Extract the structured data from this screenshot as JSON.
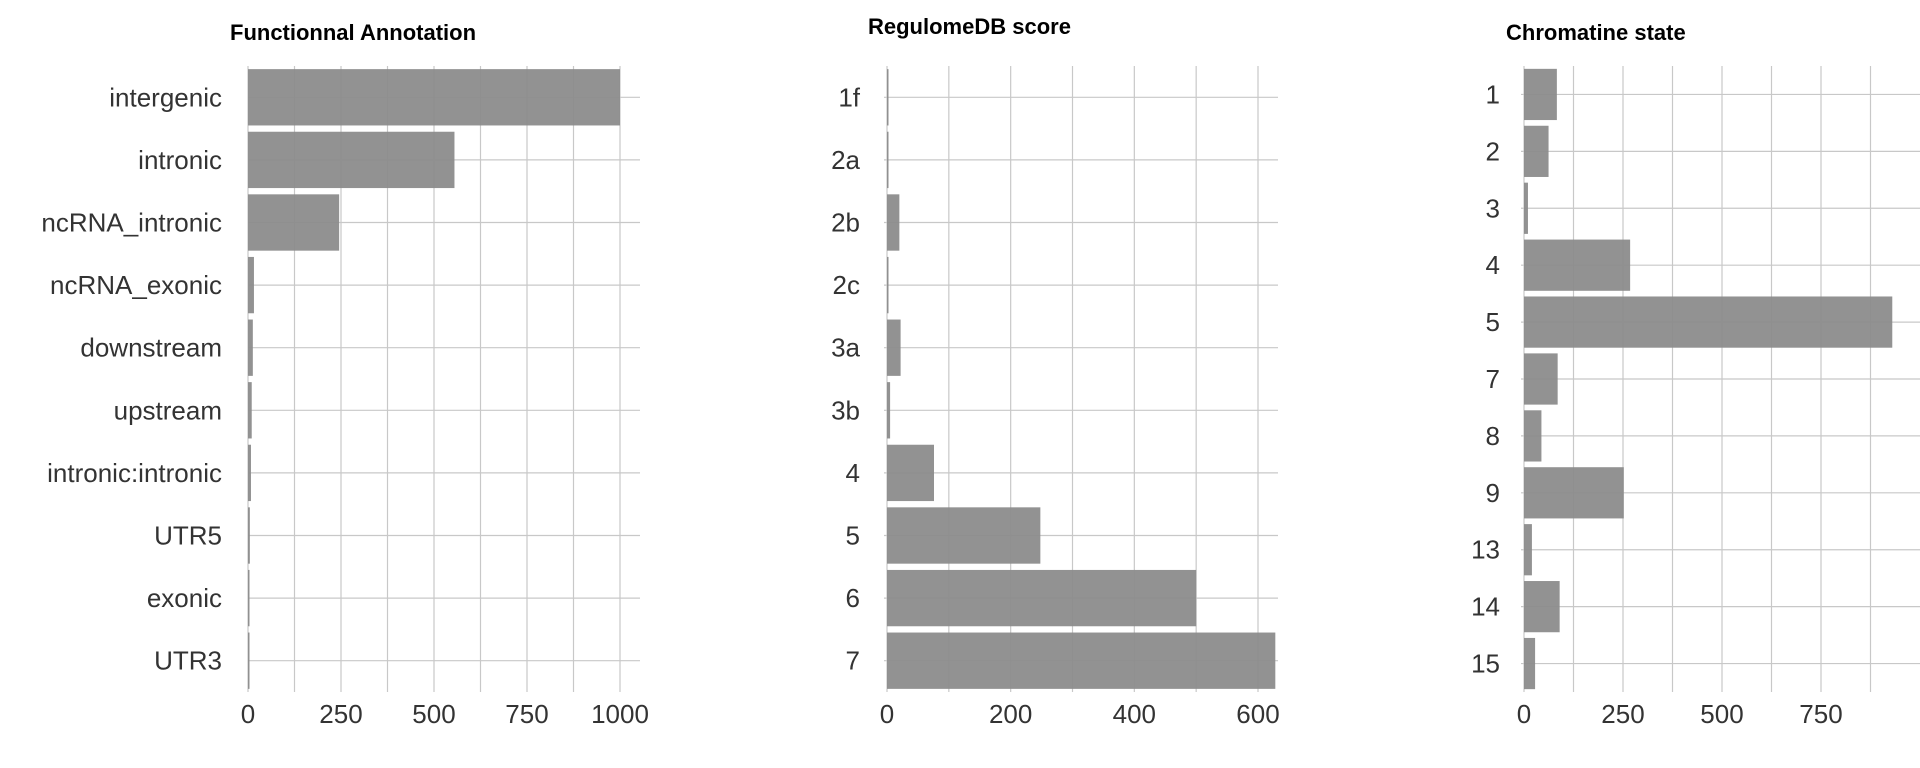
{
  "chart_data": [
    {
      "type": "bar",
      "orientation": "horizontal",
      "title": "Functionnal Annotation",
      "categories": [
        "intergenic",
        "intronic",
        "ncRNA_intronic",
        "ncRNA_exonic",
        "downstream",
        "upstream",
        "intronic:intronic",
        "UTR5",
        "exonic",
        "UTR3"
      ],
      "values": [
        1000,
        555,
        245,
        16,
        13,
        10,
        8,
        5,
        4,
        3
      ],
      "xticks": [
        0,
        250,
        500,
        750,
        1000
      ],
      "xlim": [
        0,
        1050
      ],
      "grid": true,
      "bar_color": "#8c8c8c"
    },
    {
      "type": "bar",
      "orientation": "horizontal",
      "title": "RegulomeDB score",
      "categories": [
        "1f",
        "2a",
        "2b",
        "2c",
        "3a",
        "3b",
        "4",
        "5",
        "6",
        "7"
      ],
      "values": [
        2,
        2,
        20,
        2,
        22,
        5,
        76,
        248,
        500,
        628
      ],
      "xticks": [
        0,
        200,
        400,
        600
      ],
      "xlim": [
        0,
        660
      ],
      "grid": true,
      "bar_color": "#8c8c8c"
    },
    {
      "type": "bar",
      "orientation": "horizontal",
      "title": "Chromatine state",
      "categories": [
        "1",
        "2",
        "3",
        "4",
        "5",
        "7",
        "8",
        "9",
        "13",
        "14",
        "15"
      ],
      "values": [
        83,
        62,
        10,
        268,
        930,
        85,
        44,
        252,
        20,
        90,
        28
      ],
      "xticks": [
        0,
        250,
        500,
        750
      ],
      "xlim": [
        0,
        1000
      ],
      "grid": true,
      "bar_color": "#8c8c8c"
    }
  ]
}
